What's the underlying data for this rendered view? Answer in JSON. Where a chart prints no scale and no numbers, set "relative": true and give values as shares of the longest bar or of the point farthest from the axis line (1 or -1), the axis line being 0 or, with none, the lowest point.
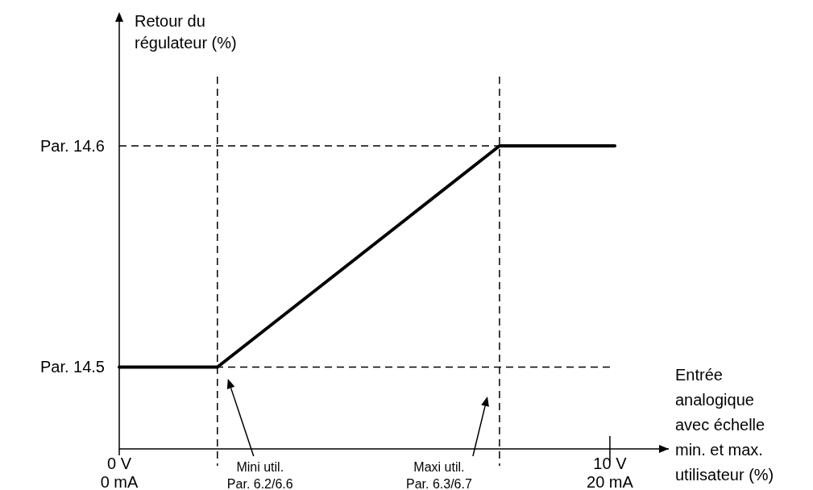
{
  "chart_data": {
    "type": "line",
    "relative": true,
    "xlabel": "Entrée analogique avec échelle min. et max. utilisateur (%)",
    "x": [
      0,
      2,
      7.75,
      10.1
    ],
    "series": [
      {
        "color": "#000000",
        "values": [
          0.27,
          0.27,
          1,
          1
        ]
      }
    ],
    "xlim": [
      0,
      11.2
    ],
    "xticks": [
      {
        "value": 0,
        "label": "0 V"
      },
      {
        "value": 10,
        "label": "10 V"
      }
    ],
    "x2lim": [
      0,
      22.4
    ],
    "x2ticks": [
      {
        "value": 0,
        "label": "0 mA"
      },
      {
        "value": 20,
        "label": "20 mA"
      }
    ],
    "line_style": "solid",
    "marker": "none",
    "ref_lines": [
      {
        "axis": "y",
        "value": 1,
        "label": "Par. 14.6",
        "line_style": "dashed",
        "color": "#000000"
      },
      {
        "axis": "y",
        "value": 0.27,
        "label": "Par. 14.5",
        "line_style": "dashed",
        "color": "#000000"
      },
      {
        "axis": "x",
        "value": 2,
        "line_style": "dashed",
        "color": "#000000"
      },
      {
        "axis": "x",
        "value": 7.75,
        "line_style": "dashed",
        "color": "#000000"
      }
    ],
    "annotations": [
      "Mini util. Par. 6.2/6.6",
      "Maxi util. Par. 6.3/6.7",
      "Retour du régulateur (%)"
    ]
  }
}
